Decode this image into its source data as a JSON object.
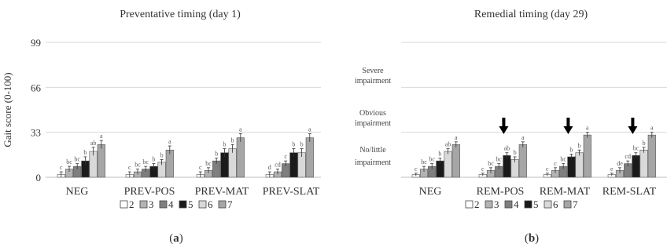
{
  "chart_data": [
    {
      "type": "bar",
      "title": "Preventative timing (day 1)",
      "ylabel": "Gait score (0-100)",
      "ylim": [
        0,
        99
      ],
      "yticks": [
        0,
        33,
        66,
        99
      ],
      "categories": [
        "NEG",
        "PREV-POS",
        "PREV-MAT",
        "PREV-SLAT"
      ],
      "series_colors": [
        "#ffffff",
        "#b3b3b3",
        "#7f7f7f",
        "#1a1a1a",
        "#d9d9d9",
        "#a6a6a6"
      ],
      "series": [
        {
          "name": "2",
          "values": [
            2,
            2,
            2,
            2
          ],
          "errors": [
            2,
            2,
            2,
            2
          ],
          "letters": [
            "c",
            "c",
            "c",
            "d"
          ]
        },
        {
          "name": "3",
          "values": [
            6,
            4,
            5,
            4
          ],
          "errors": [
            2,
            2,
            2,
            2
          ],
          "letters": [
            "bc",
            "bc",
            "bc",
            "cd"
          ]
        },
        {
          "name": "4",
          "values": [
            8,
            6,
            12,
            10
          ],
          "errors": [
            2,
            2,
            2,
            2
          ],
          "letters": [
            "bc",
            "bc",
            "b",
            "c"
          ]
        },
        {
          "name": "5",
          "values": [
            12,
            8,
            18,
            18
          ],
          "errors": [
            3,
            2,
            3,
            3
          ],
          "letters": [
            "b",
            "b",
            "b",
            "b"
          ]
        },
        {
          "name": "6",
          "values": [
            19,
            11,
            21,
            18
          ],
          "errors": [
            3,
            2,
            3,
            3
          ],
          "letters": [
            "ab",
            "b",
            "b",
            "b"
          ]
        },
        {
          "name": "7",
          "values": [
            24,
            20,
            29,
            29
          ],
          "errors": [
            3,
            3,
            3,
            3
          ],
          "letters": [
            "a",
            "a",
            "a",
            "a"
          ]
        }
      ],
      "panel_label": "(a)",
      "arrows": []
    },
    {
      "type": "bar",
      "title": "Remedial timing (day 29)",
      "ylabel": "",
      "ylim": [
        0,
        99
      ],
      "categories": [
        "NEG",
        "REM-POS",
        "REM-MAT",
        "REM-SLAT"
      ],
      "series_colors": [
        "#ffffff",
        "#b3b3b3",
        "#7f7f7f",
        "#1a1a1a",
        "#d9d9d9",
        "#a6a6a6"
      ],
      "series": [
        {
          "name": "2",
          "values": [
            2,
            2,
            2,
            2
          ],
          "errors": [
            1,
            1,
            1,
            1
          ],
          "letters": [
            "c",
            "c",
            "c",
            "e"
          ]
        },
        {
          "name": "3",
          "values": [
            6,
            5,
            5,
            5
          ],
          "errors": [
            2,
            2,
            2,
            2
          ],
          "letters": [
            "bc",
            "bc",
            "c",
            "de"
          ]
        },
        {
          "name": "4",
          "values": [
            8,
            8,
            8,
            10
          ],
          "errors": [
            2,
            2,
            2,
            2
          ],
          "letters": [
            "bc",
            "bc",
            "bc",
            "cd"
          ]
        },
        {
          "name": "5",
          "values": [
            12,
            16,
            15,
            16
          ],
          "errors": [
            2,
            2,
            2,
            2
          ],
          "letters": [
            "b",
            "ab",
            "b",
            "bc"
          ]
        },
        {
          "name": "6",
          "values": [
            19,
            13,
            18,
            20
          ],
          "errors": [
            2,
            2,
            2,
            2
          ],
          "letters": [
            "ab",
            "b",
            "b",
            "b"
          ]
        },
        {
          "name": "7",
          "values": [
            24,
            24,
            31,
            31
          ],
          "errors": [
            2,
            2,
            2,
            2
          ],
          "letters": [
            "a",
            "a",
            "a",
            "a"
          ]
        }
      ],
      "panel_label": "(b)",
      "arrows": [
        "REM-POS",
        "REM-MAT",
        "REM-SLAT"
      ]
    }
  ],
  "legend": {
    "items": [
      "2",
      "3",
      "4",
      "5",
      "6",
      "7"
    ]
  },
  "middle_labels": [
    {
      "lines": [
        "Severe",
        "impairment"
      ]
    },
    {
      "lines": [
        "Obvious",
        "impairment"
      ]
    },
    {
      "lines": [
        "No/little",
        "impairment"
      ]
    }
  ]
}
